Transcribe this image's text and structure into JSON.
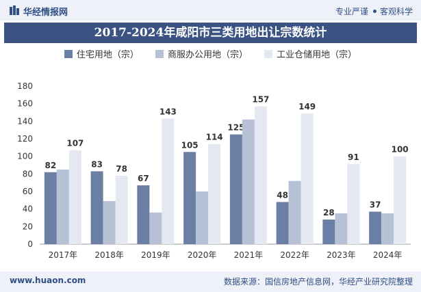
{
  "header": {
    "brand": "华经情报网",
    "slogan_left": "专业严谨",
    "slogan_right": "客观科学"
  },
  "footer": {
    "website": "www.huaon.com",
    "source": "数据来源：国信房地产信息网，华经产业研究院整理"
  },
  "colors": {
    "series1": "#6b7fa5",
    "series2": "#b7c1d6",
    "series3": "#e4e8f0",
    "title_bg": "#3a5383"
  },
  "chart_data": {
    "type": "bar",
    "title": "2017-2024年咸阳市三类用地出让宗数统计",
    "categories": [
      "2017年",
      "2018年",
      "2019年",
      "2020年",
      "2021年",
      "2022年",
      "2023年",
      "2024年"
    ],
    "series": [
      {
        "name": "住宅用地（宗）",
        "values": [
          82,
          83,
          67,
          105,
          125,
          48,
          28,
          37
        ]
      },
      {
        "name": "商服办公用地（宗）",
        "values": [
          85,
          49,
          36,
          60,
          142,
          72,
          35,
          35
        ]
      },
      {
        "name": "工业仓储用地（宗）",
        "values": [
          107,
          78,
          143,
          114,
          157,
          149,
          91,
          100
        ]
      }
    ],
    "data_labels": [
      [
        82,
        83,
        67,
        105,
        125,
        48,
        28,
        37
      ],
      null,
      [
        107,
        78,
        143,
        114,
        157,
        149,
        91,
        100
      ]
    ],
    "yticks": [
      0,
      20,
      40,
      60,
      80,
      100,
      120,
      140,
      160,
      180
    ],
    "ylim": [
      0,
      180
    ],
    "legend_position": "top"
  }
}
